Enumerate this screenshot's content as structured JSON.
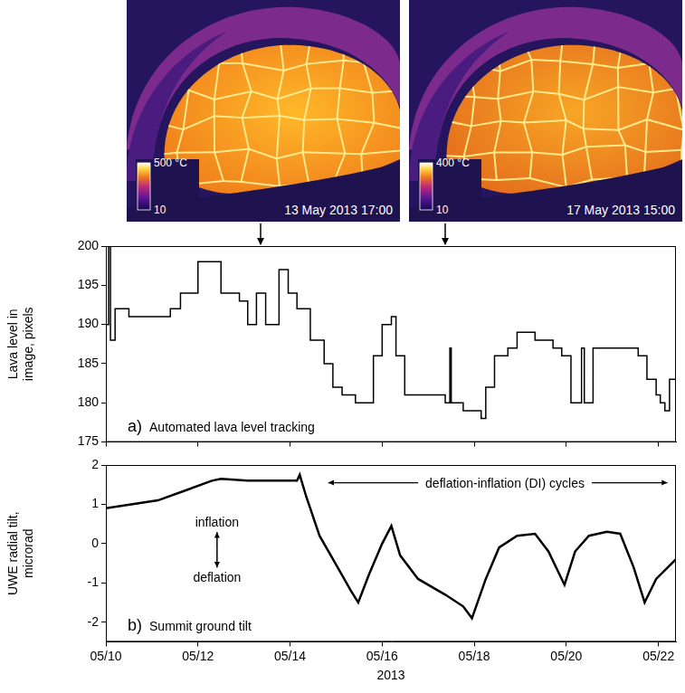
{
  "images": [
    {
      "colorbar": {
        "range": [
          10,
          500
        ],
        "ticks": [
          {
            "value": 500,
            "label": "500 °C"
          },
          10
        ]
      },
      "timestamp": "13 May 2013 17:00"
    },
    {
      "colorbar": {
        "range": [
          10,
          400
        ],
        "ticks": [
          {
            "value": 400,
            "label": "400 °C"
          },
          10
        ]
      },
      "timestamp": "17 May 2013 15:00"
    }
  ],
  "chart_data": [
    {
      "type": "line",
      "panel_label": "a)",
      "annotations": {
        "caption": "Automated lava level tracking"
      },
      "y_label": [
        "Lava level in",
        "image, pixels"
      ],
      "xlim": [
        10,
        22.38
      ],
      "xticks": [
        {
          "value": 10,
          "label": "05/10"
        },
        {
          "value": 12,
          "label": "05/12"
        },
        {
          "value": 14,
          "label": "05/14"
        },
        {
          "value": 16,
          "label": "05/16"
        },
        {
          "value": 18,
          "label": "05/18"
        },
        {
          "value": 20,
          "label": "05/20"
        },
        {
          "value": 22,
          "label": "05/22"
        }
      ],
      "ylim": [
        175,
        200
      ],
      "yticks": [
        175,
        180,
        185,
        190,
        195,
        200
      ],
      "grid": false,
      "tick_labels": "y",
      "series": [
        {
          "color": "#000000",
          "line_style": "stepped",
          "x": [
            10.0,
            10.06,
            10.1,
            10.2,
            10.5,
            11.0,
            11.4,
            11.62,
            11.8,
            12.0,
            12.3,
            12.5,
            12.9,
            13.08,
            13.27,
            13.47,
            13.76,
            13.96,
            14.15,
            14.44,
            14.74,
            14.93,
            15.13,
            15.42,
            15.61,
            15.81,
            16.0,
            16.2,
            16.3,
            16.49,
            16.98,
            17.37,
            17.47,
            17.5,
            17.76,
            18.15,
            18.25,
            18.44,
            18.73,
            18.93,
            19.32,
            19.71,
            19.9,
            20.1,
            20.29,
            20.33,
            20.39,
            20.58,
            21.27,
            21.56,
            21.75,
            21.95,
            22.04,
            22.14,
            22.24,
            22.38
          ],
          "values": [
            190,
            200,
            188,
            192,
            191,
            191,
            192,
            194,
            194,
            198,
            198,
            194,
            193,
            190,
            194,
            190,
            197,
            194,
            192,
            188,
            185,
            182,
            181,
            180,
            180,
            186,
            190,
            191,
            186,
            181,
            181,
            180,
            187,
            180,
            179,
            178,
            182,
            186,
            187,
            189,
            188,
            187,
            186,
            180,
            180,
            187,
            180,
            187,
            187,
            186,
            183,
            181,
            180,
            179,
            183,
            186
          ]
        }
      ]
    },
    {
      "type": "line",
      "panel_label": "b)",
      "annotations": {
        "caption": "Summit ground tilt",
        "up": "inflation",
        "down": "deflation",
        "cycles": "deflation-inflation (DI) cycles"
      },
      "x_label": "2013",
      "y_label": [
        "UWE radial tilt,",
        "microrad"
      ],
      "xlim": [
        10,
        22.38
      ],
      "xticks": [
        {
          "value": 10,
          "label": "05/10"
        },
        {
          "value": 12,
          "label": "05/12"
        },
        {
          "value": 14,
          "label": "05/14"
        },
        {
          "value": 16,
          "label": "05/16"
        },
        {
          "value": 18,
          "label": "05/18"
        },
        {
          "value": 20,
          "label": "05/20"
        },
        {
          "value": 22,
          "label": "05/22"
        }
      ],
      "ylim": [
        -2.5,
        2
      ],
      "yticks": [
        -2,
        -1,
        0,
        1,
        2
      ],
      "grid": false,
      "series": [
        {
          "color": "#000000",
          "line_style": "solid",
          "x": [
            10.0,
            10.55,
            11.13,
            11.72,
            12.3,
            12.5,
            13.08,
            13.66,
            14.15,
            14.21,
            14.35,
            14.64,
            15.03,
            15.32,
            15.48,
            15.71,
            16.0,
            16.2,
            16.39,
            16.78,
            17.37,
            17.76,
            17.95,
            18.25,
            18.54,
            18.93,
            19.32,
            19.61,
            19.96,
            20.19,
            20.49,
            20.88,
            21.17,
            21.46,
            21.7,
            21.95,
            22.38
          ],
          "values": [
            0.9,
            1.0,
            1.1,
            1.35,
            1.6,
            1.65,
            1.6,
            1.6,
            1.6,
            1.75,
            1.2,
            0.2,
            -0.6,
            -1.2,
            -1.5,
            -0.8,
            0.0,
            0.45,
            -0.3,
            -0.9,
            -1.3,
            -1.6,
            -1.9,
            -0.9,
            -0.1,
            0.2,
            0.25,
            -0.2,
            -1.05,
            -0.2,
            0.2,
            0.3,
            0.25,
            -0.6,
            -1.5,
            -0.9,
            -0.4
          ]
        }
      ]
    }
  ]
}
